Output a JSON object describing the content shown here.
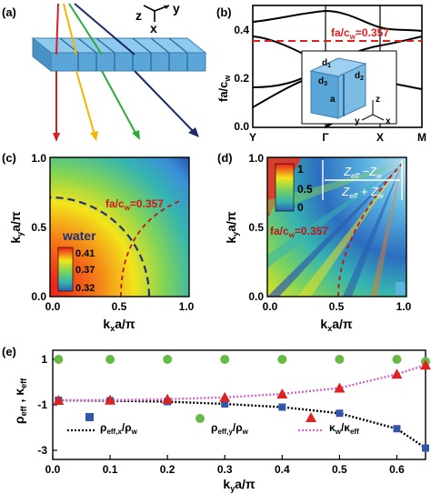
{
  "panels": {
    "a": {
      "label": "(a)",
      "axes": {
        "z": "z",
        "y": "y",
        "x": "x"
      }
    },
    "b": {
      "label": "(b)",
      "ylabel_main": "fa/c",
      "ylabel_sub": "w",
      "yticks": [
        "0.0",
        "0.2",
        "0.4"
      ],
      "xticks": [
        "Y",
        "Γ",
        "X",
        "M"
      ],
      "annotation_main": "fa/c",
      "annotation_sub": "w",
      "annotation_val": "=0.357",
      "inset": {
        "d1": "d",
        "d1s": "1",
        "d2": "d",
        "d2s": "2",
        "d3": "d",
        "d3s": "3",
        "a": "a",
        "z": "z",
        "y": "y",
        "x": "x"
      }
    },
    "c": {
      "label": "(c)",
      "xlabel_k": "k",
      "xlabel_sub": "x",
      "xlabel_rest": "a/π",
      "ylabel_k": "k",
      "ylabel_sub": "y",
      "ylabel_rest": "a/π",
      "xticks": [
        "0.0",
        "0.5",
        "1.0"
      ],
      "yticks": [
        "0.0",
        "0.5",
        "1.0"
      ],
      "water": "water",
      "annotation_main": "fa/c",
      "annotation_sub": "w",
      "annotation_val": "=0.357",
      "cbar": [
        "0.41",
        "0.37",
        "0.32"
      ]
    },
    "d": {
      "label": "(d)",
      "xlabel_k": "k",
      "xlabel_sub": "x",
      "xlabel_rest": "a/π",
      "ylabel_k": "k",
      "ylabel_sub": "y",
      "ylabel_rest": "a/π",
      "xticks": [
        "0.0",
        "0.5",
        "1.0"
      ],
      "yticks": [
        "0.0",
        "0.5",
        "1.0"
      ],
      "annotation_main": "fa/c",
      "annotation_sub": "w",
      "annotation_val": "=0.357",
      "cbar": [
        "1",
        "0.5",
        "0"
      ],
      "formula_num": "Z",
      "formula_num_sub": "eff",
      "formula_minus": " −Z",
      "formula_w": "w",
      "formula_plus": " + Z"
    },
    "e": {
      "label": "(e)",
      "yticks": [
        "1",
        "-1",
        "-3"
      ],
      "xticks": [
        "0.0",
        "0.1",
        "0.2",
        "0.3",
        "0.4",
        "0.5",
        "0.6"
      ],
      "xlabel_k": "k",
      "xlabel_sub": "y",
      "xlabel_rest": "a/π",
      "ylabel_rho": "ρ",
      "ylabel_rho_sub": "eff",
      "ylabel_sep": " , ",
      "ylabel_kappa": "κ",
      "ylabel_kappa_sub": "eff",
      "legend": [
        {
          "main": "ρ",
          "sub": "eff,x",
          "rest": "/ρ",
          "sub2": "w"
        },
        {
          "main": "ρ",
          "sub": "eff,y",
          "rest": "/ρ",
          "sub2": "w"
        },
        {
          "main": "κ",
          "sub": "w",
          "rest": "/κ",
          "sub2": "eff"
        }
      ]
    }
  },
  "chart_data": [
    {
      "type": "line",
      "panel": "e",
      "xlabel": "kya/π",
      "ylabel": "ρeff , κeff",
      "xlim": [
        0,
        0.65
      ],
      "ylim": [
        -3.4,
        1.4
      ],
      "series": [
        {
          "name": "ρeff,x/ρw",
          "marker": "square",
          "color": "#3355aa",
          "x": [
            0.01,
            0.1,
            0.2,
            0.3,
            0.4,
            0.5,
            0.6,
            0.65
          ],
          "values": [
            -0.8,
            -0.82,
            -0.86,
            -0.96,
            -1.1,
            -1.37,
            -2.05,
            -2.9
          ]
        },
        {
          "name": "ρeff,y/ρw",
          "marker": "circle",
          "color": "#66bb44",
          "x": [
            0.01,
            0.1,
            0.2,
            0.3,
            0.4,
            0.5,
            0.6,
            0.65
          ],
          "values": [
            1.0,
            1.0,
            1.0,
            1.0,
            1.0,
            1.0,
            1.0,
            0.9
          ]
        },
        {
          "name": "κw/κeff",
          "marker": "triangle",
          "color": "#dd2222",
          "x": [
            0.01,
            0.1,
            0.2,
            0.3,
            0.4,
            0.5,
            0.6,
            0.65
          ],
          "values": [
            -0.8,
            -0.79,
            -0.75,
            -0.67,
            -0.52,
            -0.26,
            0.35,
            0.75
          ]
        }
      ]
    }
  ]
}
